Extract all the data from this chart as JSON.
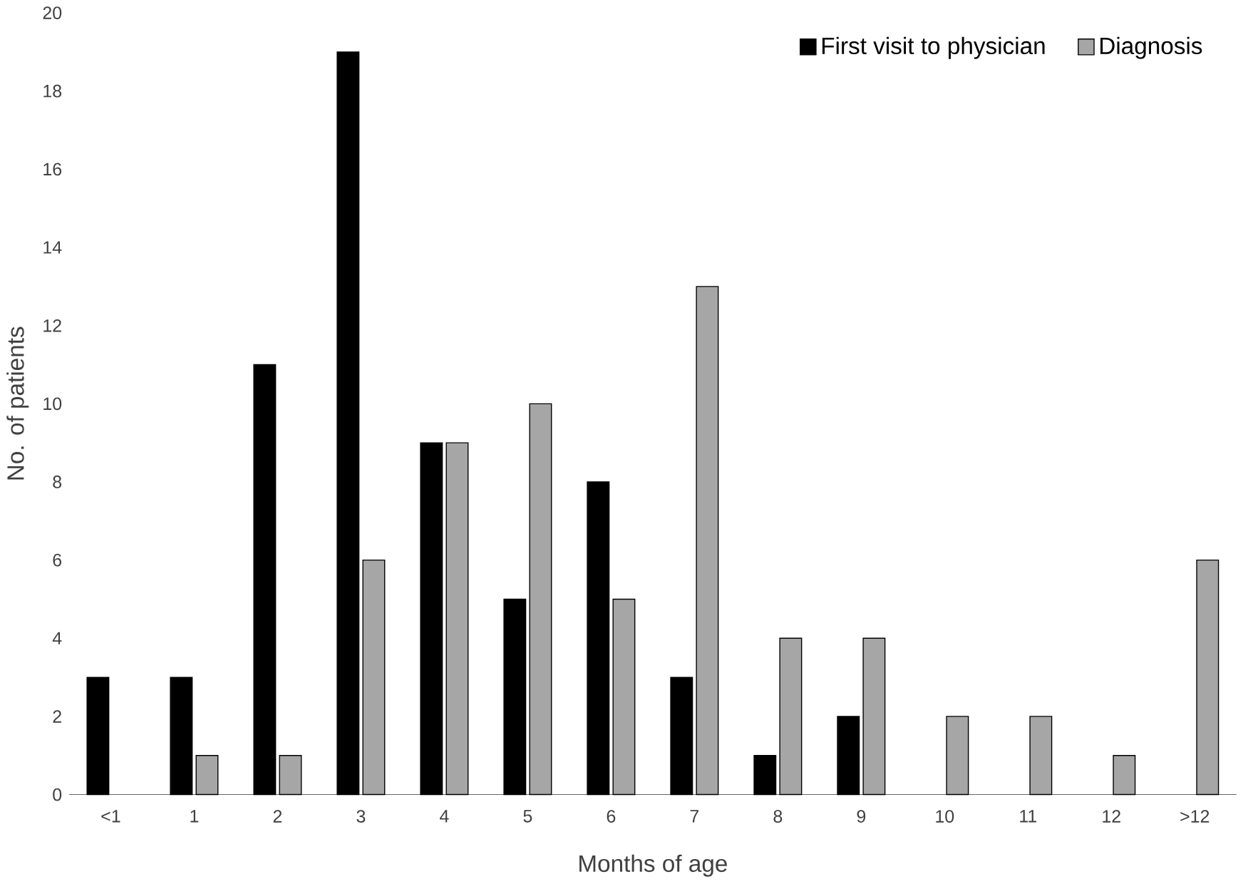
{
  "chart_data": {
    "type": "bar",
    "xlabel": "Months  of age",
    "ylabel": "No. of patients",
    "categories": [
      "<1",
      "1",
      "2",
      "3",
      "4",
      "5",
      "6",
      "7",
      "8",
      "9",
      "10",
      "11",
      "12",
      ">12"
    ],
    "series": [
      {
        "name": "First visit to physician",
        "color": "#000000",
        "values": [
          3,
          3,
          11,
          19,
          9,
          5,
          8,
          3,
          1,
          2,
          0,
          0,
          0,
          0
        ]
      },
      {
        "name": "Diagnosis",
        "color": "#a6a6a6",
        "values": [
          0,
          1,
          1,
          6,
          9,
          10,
          5,
          13,
          4,
          4,
          2,
          2,
          1,
          6
        ]
      }
    ],
    "ylim": [
      0,
      20
    ],
    "yticks": [
      0,
      2,
      4,
      6,
      8,
      10,
      12,
      14,
      16,
      18,
      20
    ],
    "grid": false,
    "legend": "top right"
  }
}
